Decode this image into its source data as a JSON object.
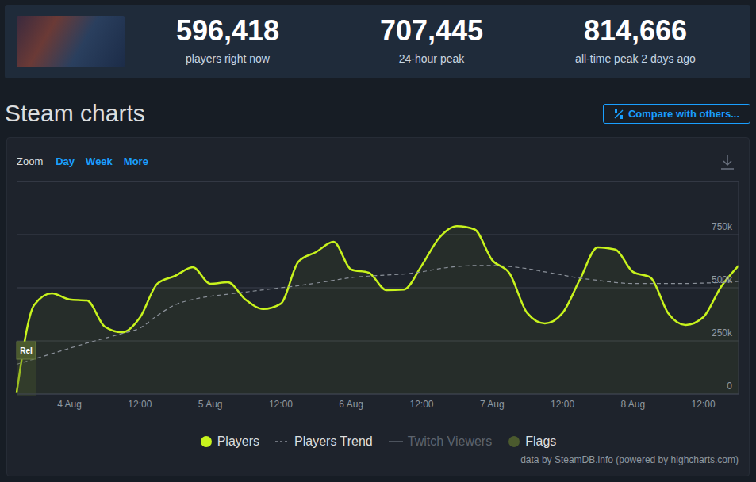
{
  "header": {
    "stats": [
      {
        "value": "596,418",
        "label": "players right now"
      },
      {
        "value": "707,445",
        "label": "24-hour peak"
      },
      {
        "value": "814,666",
        "label": "all-time peak 2 days ago"
      }
    ]
  },
  "title": "Steam charts",
  "compare_button": "Compare with others...",
  "zoom": {
    "label": "Zoom",
    "options": [
      "Day",
      "Week",
      "More"
    ]
  },
  "credit": "data by SteamDB.info (powered by highcharts.com)",
  "chart_data": {
    "type": "line",
    "categories": [
      null,
      null,
      null,
      "4 Aug",
      null,
      null,
      null,
      "12:00",
      null,
      null,
      null,
      "5 Aug",
      null,
      null,
      null,
      "12:00",
      null,
      null,
      null,
      "6 Aug",
      null,
      null,
      null,
      "12:00",
      null,
      null,
      null,
      "7 Aug",
      null,
      null,
      null,
      "12:00",
      null,
      null,
      null,
      "8 Aug",
      null,
      null,
      null,
      "12:00",
      null,
      null
    ],
    "series": [
      {
        "name": "Players",
        "color": "#c8f31d",
        "line_style": "solid",
        "values": [
          5000,
          420000,
          474000,
          445000,
          440000,
          317000,
          290000,
          360000,
          520000,
          556000,
          597000,
          519000,
          526000,
          444000,
          400000,
          425000,
          623000,
          668000,
          716000,
          586000,
          571000,
          489000,
          492000,
          604000,
          735000,
          790000,
          775000,
          631000,
          567000,
          381000,
          332000,
          381000,
          541000,
          690000,
          680000,
          575000,
          548000,
          381000,
          325000,
          362000,
          504000,
          604000
        ]
      },
      {
        "name": "Players Trend",
        "color": "#8a9099",
        "line_style": "dashed",
        "values": [
          140000,
          165000,
          190000,
          215000,
          240000,
          262000,
          285000,
          310000,
          370000,
          420000,
          445000,
          460000,
          470000,
          480000,
          490000,
          500000,
          510000,
          522000,
          535000,
          548000,
          555000,
          560000,
          565000,
          575000,
          590000,
          600000,
          605000,
          605000,
          600000,
          590000,
          575000,
          560000,
          545000,
          535000,
          525000,
          520000,
          520000,
          520000,
          520000,
          522000,
          525000,
          530000
        ]
      }
    ],
    "legend_hidden": [
      {
        "name": "Twitch Viewers",
        "color": "#5d646e"
      }
    ],
    "flags": {
      "name": "Flags",
      "color": "#4b5a2e",
      "items": [
        {
          "label": "Rel",
          "index": 0
        }
      ]
    },
    "ylim": [
      0,
      1000000
    ],
    "yticks": [
      0,
      {
        "value": 250000,
        "label": "250k"
      },
      {
        "value": 500000,
        "label": "500k"
      },
      {
        "value": 750000,
        "label": "750k"
      }
    ],
    "grid": true,
    "legend": "bottom"
  }
}
